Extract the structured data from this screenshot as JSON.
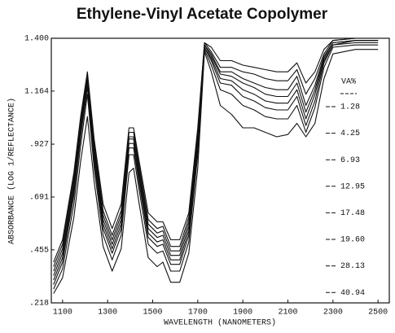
{
  "chart_data": {
    "type": "line",
    "title": "Ethylene-Vinyl Acetate Copolymer",
    "x_label": "WAVELENGTH (NANOMETERS)",
    "y_label": "ABSORBANCE (LOG 1/REFLECTANCE)",
    "legend_title": "VA%",
    "legend": "right",
    "color": "#111111",
    "xlim": [
      1050,
      2550
    ],
    "xticks": [
      1100,
      1300,
      1500,
      1700,
      1900,
      2100,
      2300,
      2500
    ],
    "ylim": [
      0.218,
      1.4
    ],
    "yticks": [
      {
        "value": 0.218,
        "label": ".218"
      },
      {
        "value": 0.455,
        "label": ".455"
      },
      {
        "value": 0.691,
        "label": ".691"
      },
      {
        "value": 0.927,
        "label": ".927"
      },
      1.164,
      {
        "value": 1.4,
        "label": "1.400"
      }
    ],
    "x": [
      1060,
      1100,
      1150,
      1180,
      1210,
      1240,
      1280,
      1320,
      1360,
      1395,
      1415,
      1440,
      1480,
      1520,
      1545,
      1580,
      1620,
      1660,
      1700,
      1730,
      1760,
      1800,
      1850,
      1900,
      1950,
      2000,
      2050,
      2100,
      2140,
      2180,
      2220,
      2260,
      2300,
      2400,
      2500
    ],
    "series": [
      {
        "name": "1.28",
        "values": [
          0.4,
          0.5,
          0.8,
          1.05,
          1.25,
          0.95,
          0.66,
          0.55,
          0.66,
          1.0,
          1.0,
          0.85,
          0.62,
          0.58,
          0.58,
          0.5,
          0.5,
          0.62,
          1.0,
          1.38,
          1.36,
          1.3,
          1.3,
          1.28,
          1.27,
          1.26,
          1.25,
          1.25,
          1.29,
          1.2,
          1.25,
          1.35,
          1.39,
          1.4,
          1.4
        ]
      },
      {
        "name": "4.25",
        "values": [
          0.38,
          0.48,
          0.78,
          1.03,
          1.24,
          0.93,
          0.63,
          0.52,
          0.63,
          0.98,
          0.98,
          0.83,
          0.59,
          0.55,
          0.56,
          0.47,
          0.47,
          0.6,
          0.98,
          1.38,
          1.34,
          1.27,
          1.27,
          1.25,
          1.24,
          1.22,
          1.21,
          1.21,
          1.26,
          1.15,
          1.22,
          1.33,
          1.39,
          1.4,
          1.4
        ]
      },
      {
        "name": "6.93",
        "values": [
          0.36,
          0.46,
          0.76,
          1.01,
          1.22,
          0.91,
          0.61,
          0.5,
          0.61,
          0.96,
          0.96,
          0.81,
          0.57,
          0.53,
          0.54,
          0.45,
          0.45,
          0.58,
          0.96,
          1.37,
          1.33,
          1.25,
          1.25,
          1.22,
          1.2,
          1.18,
          1.17,
          1.17,
          1.23,
          1.1,
          1.19,
          1.32,
          1.38,
          1.39,
          1.39
        ]
      },
      {
        "name": "12.95",
        "values": [
          0.34,
          0.44,
          0.74,
          1.0,
          1.21,
          0.89,
          0.59,
          0.48,
          0.59,
          0.95,
          0.95,
          0.79,
          0.55,
          0.51,
          0.52,
          0.43,
          0.43,
          0.56,
          0.95,
          1.37,
          1.32,
          1.24,
          1.23,
          1.2,
          1.18,
          1.15,
          1.14,
          1.14,
          1.2,
          1.07,
          1.17,
          1.31,
          1.38,
          1.39,
          1.39
        ]
      },
      {
        "name": "17.48",
        "values": [
          0.32,
          0.42,
          0.72,
          0.98,
          1.2,
          0.87,
          0.57,
          0.46,
          0.57,
          0.93,
          0.93,
          0.77,
          0.53,
          0.49,
          0.5,
          0.41,
          0.41,
          0.54,
          0.93,
          1.36,
          1.31,
          1.22,
          1.21,
          1.17,
          1.15,
          1.12,
          1.11,
          1.11,
          1.17,
          1.04,
          1.15,
          1.3,
          1.37,
          1.39,
          1.39
        ]
      },
      {
        "name": "19.60",
        "values": [
          0.3,
          0.4,
          0.7,
          0.96,
          1.18,
          0.85,
          0.55,
          0.44,
          0.55,
          0.91,
          0.91,
          0.75,
          0.51,
          0.47,
          0.48,
          0.39,
          0.39,
          0.52,
          0.91,
          1.36,
          1.3,
          1.2,
          1.19,
          1.14,
          1.12,
          1.09,
          1.08,
          1.08,
          1.14,
          1.01,
          1.12,
          1.29,
          1.37,
          1.38,
          1.38
        ]
      },
      {
        "name": "28.13",
        "values": [
          0.28,
          0.37,
          0.66,
          0.92,
          1.15,
          0.82,
          0.52,
          0.41,
          0.52,
          0.88,
          0.88,
          0.72,
          0.48,
          0.44,
          0.45,
          0.36,
          0.36,
          0.49,
          0.88,
          1.35,
          1.28,
          1.17,
          1.15,
          1.1,
          1.08,
          1.05,
          1.04,
          1.04,
          1.1,
          0.98,
          1.09,
          1.27,
          1.36,
          1.37,
          1.37
        ]
      },
      {
        "name": "40.94",
        "values": [
          0.26,
          0.33,
          0.6,
          0.85,
          1.05,
          0.76,
          0.47,
          0.36,
          0.46,
          0.8,
          0.82,
          0.66,
          0.42,
          0.38,
          0.4,
          0.31,
          0.31,
          0.44,
          0.82,
          1.34,
          1.25,
          1.1,
          1.06,
          1.0,
          1.0,
          0.98,
          0.96,
          0.97,
          1.02,
          0.96,
          1.02,
          1.22,
          1.33,
          1.35,
          1.35
        ]
      }
    ]
  }
}
